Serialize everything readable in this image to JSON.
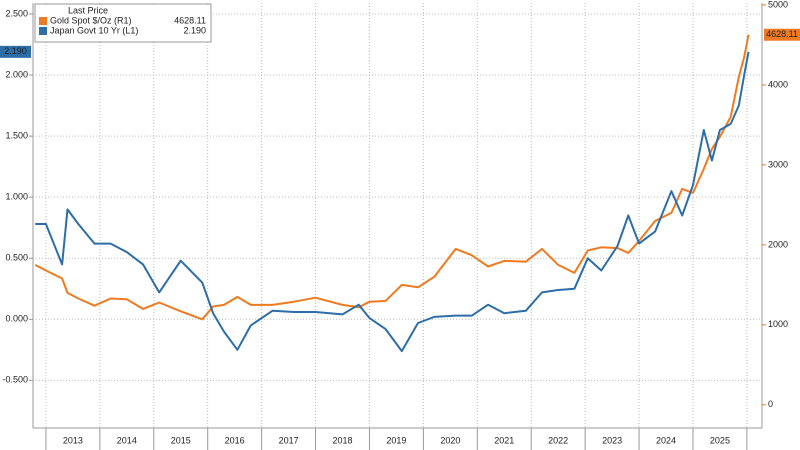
{
  "chart_data": {
    "type": "line",
    "legend_title": "Last Price",
    "legend": "top-left",
    "grid": true,
    "x": [
      2012.8,
      2013.0,
      2013.3,
      2013.4,
      2013.6,
      2013.9,
      2014.2,
      2014.5,
      2014.8,
      2015.1,
      2015.5,
      2015.9,
      2016.1,
      2016.3,
      2016.55,
      2016.8,
      2017.2,
      2017.6,
      2018.0,
      2018.5,
      2018.8,
      2019.0,
      2019.3,
      2019.6,
      2019.9,
      2020.2,
      2020.6,
      2020.9,
      2021.2,
      2021.5,
      2021.9,
      2022.2,
      2022.5,
      2022.8,
      2023.05,
      2023.3,
      2023.6,
      2023.8,
      2024.0,
      2024.3,
      2024.6,
      2024.8,
      2025.0,
      2025.2,
      2025.35,
      2025.5,
      2025.7,
      2025.85,
      2025.95,
      2026.03
    ],
    "xlim": [
      2012.76,
      2026.28
    ],
    "xticks": [
      {
        "value": 2013.5,
        "label": "2013"
      },
      {
        "value": 2014.5,
        "label": "2014"
      },
      {
        "value": 2015.5,
        "label": "2015"
      },
      {
        "value": 2016.5,
        "label": "2016"
      },
      {
        "value": 2017.5,
        "label": "2017"
      },
      {
        "value": 2018.5,
        "label": "2018"
      },
      {
        "value": 2019.5,
        "label": "2019"
      },
      {
        "value": 2020.5,
        "label": "2020"
      },
      {
        "value": 2021.5,
        "label": "2021"
      },
      {
        "value": 2022.5,
        "label": "2022"
      },
      {
        "value": 2023.5,
        "label": "2023"
      },
      {
        "value": 2024.5,
        "label": "2024"
      },
      {
        "value": 2025.5,
        "label": "2025"
      }
    ],
    "xgrid": [
      2013,
      2014,
      2015,
      2016,
      2017,
      2018,
      2019,
      2020,
      2021,
      2022,
      2023,
      2024,
      2025,
      2026
    ],
    "ylim": [
      -0.89,
      2.59
    ],
    "yticks": [
      {
        "value": -0.5,
        "label": "-0.500"
      },
      {
        "value": 0,
        "label": "0.000"
      },
      {
        "value": 0.5,
        "label": "0.500"
      },
      {
        "value": 1,
        "label": "1.000"
      },
      {
        "value": 1.5,
        "label": "1.500"
      },
      {
        "value": 2,
        "label": "2.000"
      },
      {
        "value": 2.5,
        "label": "2.500"
      }
    ],
    "y2lim": [
      -290,
      5025
    ],
    "y2ticks": [
      0,
      1000,
      2000,
      3000,
      4000,
      5000
    ],
    "series": [
      {
        "name": "Gold Spot $/Oz  (R1)",
        "color": "#f07a22",
        "axis": "y2",
        "last": 4628.11,
        "values": [
          1750,
          1680,
          1580,
          1400,
          1330,
          1240,
          1330,
          1320,
          1200,
          1280,
          1170,
          1070,
          1230,
          1250,
          1350,
          1250,
          1250,
          1290,
          1340,
          1250,
          1220,
          1290,
          1300,
          1500,
          1470,
          1600,
          1950,
          1870,
          1730,
          1800,
          1790,
          1950,
          1750,
          1650,
          1930,
          1970,
          1960,
          1900,
          2050,
          2300,
          2400,
          2700,
          2650,
          2950,
          3200,
          3350,
          3600,
          4100,
          4350,
          4628.11
        ]
      },
      {
        "name": "Japan Govt 10 Yr  (L1)",
        "color": "#2d6ea8",
        "axis": "y",
        "last": {
          "value": 2.19,
          "label": "2.190"
        },
        "values": [
          0.78,
          0.78,
          0.45,
          0.9,
          0.78,
          0.62,
          0.62,
          0.55,
          0.45,
          0.22,
          0.48,
          0.3,
          0.05,
          -0.1,
          -0.25,
          -0.05,
          0.07,
          0.06,
          0.06,
          0.04,
          0.12,
          0.01,
          -0.08,
          -0.26,
          -0.03,
          0.02,
          0.03,
          0.03,
          0.12,
          0.05,
          0.07,
          0.22,
          0.24,
          0.25,
          0.5,
          0.4,
          0.6,
          0.85,
          0.62,
          0.72,
          1.05,
          0.85,
          1.1,
          1.55,
          1.3,
          1.55,
          1.6,
          1.75,
          2.0,
          2.19
        ]
      }
    ]
  }
}
